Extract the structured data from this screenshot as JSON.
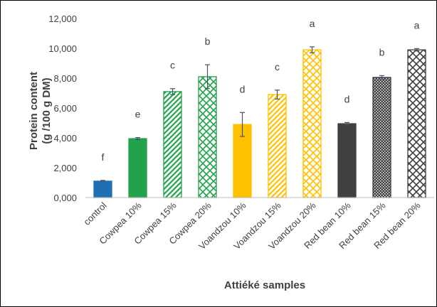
{
  "chart_data": {
    "type": "bar",
    "ylabel_line1": "Protein content",
    "ylabel_line2": "(g /100 g DM)",
    "xlabel": "Attiéké samples",
    "ylim": [
      0,
      12
    ],
    "yticks": [
      "0,000",
      "2,000",
      "4,000",
      "6,000",
      "8,000",
      "10,000",
      "12,000"
    ],
    "categories": [
      "control",
      "Cowpea 10%",
      "Cowpea 15%",
      "Cowpea 20%",
      "Voandzou 10%",
      "Voandzou 15%",
      "Voandzou 20%",
      "Red bean 10%",
      "Red bean 15%",
      "Red bean 20%"
    ],
    "values": [
      1.1,
      3.95,
      7.1,
      8.1,
      4.9,
      6.9,
      9.9,
      4.95,
      8.05,
      9.9
    ],
    "errors": [
      0.05,
      0.07,
      0.2,
      0.8,
      0.8,
      0.3,
      0.2,
      0.08,
      0.12,
      0.08
    ],
    "letters": [
      "f",
      "e",
      "c",
      "b",
      "d",
      "c",
      "a",
      "d",
      "b",
      "a"
    ],
    "colors": [
      "#1F6FB4",
      "#22A24A",
      "#22A24A",
      "#22A24A",
      "#FFC000",
      "#FFC000",
      "#FFC000",
      "#404040",
      "#404040",
      "#404040"
    ],
    "patterns": [
      "solid",
      "solid",
      "diag",
      "lattice",
      "solid",
      "diag",
      "lattice",
      "solid",
      "diag",
      "lattice"
    ],
    "grid": false
  }
}
